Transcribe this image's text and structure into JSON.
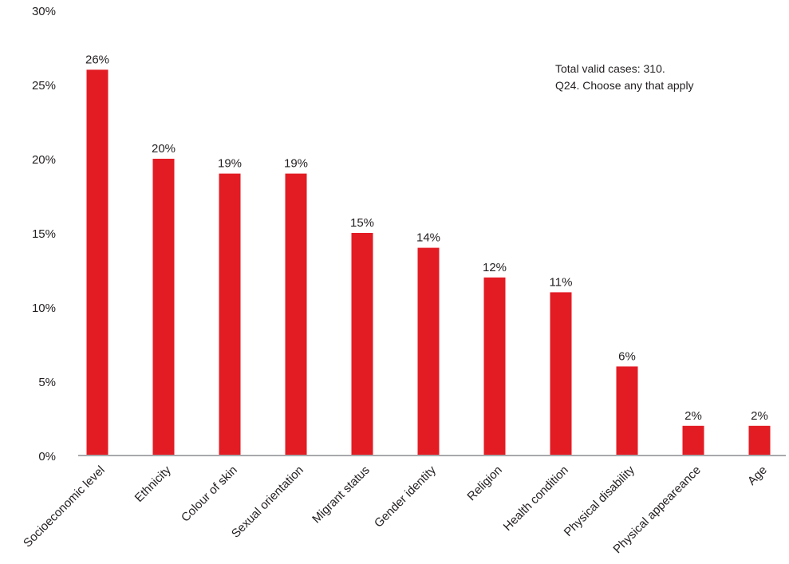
{
  "chart_data": {
    "type": "bar",
    "categories": [
      "Socioeconomic level",
      "Ethnicity",
      "Colour of skin",
      "Sexual orientation",
      "Migrant status",
      "Gender identity",
      "Religion",
      "Health condition",
      "Physical disability",
      "Physical appeareance",
      "Age"
    ],
    "values": [
      26,
      20,
      19,
      19,
      15,
      14,
      12,
      11,
      6,
      2,
      2
    ],
    "data_labels": [
      "26%",
      "20%",
      "19%",
      "19%",
      "15%",
      "14%",
      "12%",
      "11%",
      "6%",
      "2%",
      "2%"
    ],
    "ylim": [
      0,
      30
    ],
    "yticks": [
      0,
      5,
      10,
      15,
      20,
      25,
      30
    ],
    "ytick_labels": [
      "0%",
      "5%",
      "10%",
      "15%",
      "20%",
      "25%",
      "30%"
    ],
    "bar_color": "#e31b23",
    "grid": false,
    "notes": [
      "Total valid cases: 310.",
      "Q24. Choose any that apply"
    ]
  }
}
